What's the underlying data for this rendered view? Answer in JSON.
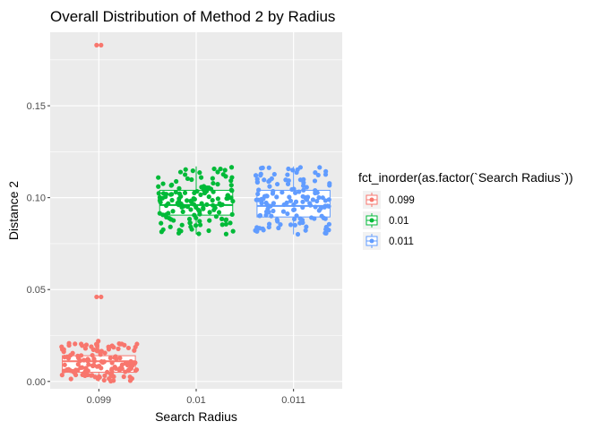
{
  "chart_data": {
    "type": "box+jitter",
    "title": "Overall Distribution of Method 2 by Radius",
    "xlabel": "Search Radius",
    "ylabel": "Distance 2",
    "categories": [
      "0.099",
      "0.01",
      "0.011"
    ],
    "ylim": [
      -0.004,
      0.19
    ],
    "yticks": [
      0.0,
      0.05,
      0.1,
      0.15
    ],
    "ytick_labels": [
      "0.00",
      "0.05",
      "0.10",
      "0.15"
    ],
    "grid": true,
    "legend": {
      "title": "fct_inorder(as.factor(`Search Radius`))",
      "position": "right",
      "entries": [
        "0.099",
        "0.01",
        "0.011"
      ]
    },
    "colors": [
      "#F8766D",
      "#00BA38",
      "#619CFF"
    ],
    "series": [
      {
        "name": "0.099",
        "box": {
          "min": 0.0,
          "q1": 0.005,
          "median": 0.011,
          "q3": 0.014,
          "max": 0.022
        },
        "outliers": [
          0.183,
          0.183,
          0.046,
          0.046
        ]
      },
      {
        "name": "0.01",
        "box": {
          "min": 0.08,
          "q1": 0.0905,
          "median": 0.096,
          "q3": 0.104,
          "max": 0.117
        }
      },
      {
        "name": "0.011",
        "box": {
          "min": 0.08,
          "q1": 0.0895,
          "median": 0.0955,
          "q3": 0.104,
          "max": 0.117
        }
      }
    ]
  }
}
